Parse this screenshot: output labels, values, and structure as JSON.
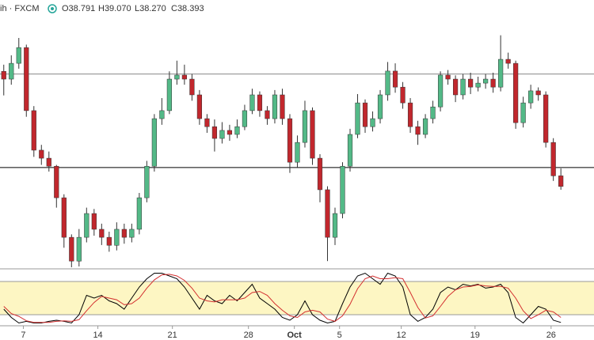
{
  "header": {
    "symbol": "ih · FXCM",
    "ohlc": [
      "O38.791",
      "H39.070",
      "L38.270",
      "C38.393"
    ]
  },
  "chart_data": [
    {
      "type": "candlestick",
      "xlim": [
        -0.5,
        78.4
      ],
      "ylim": [
        35.31,
        45.37
      ],
      "up_color": "#53b987",
      "down_color": "#c1272d",
      "wick_color": "#333333",
      "levels": [
        {
          "value": 42.6,
          "color": "#888888"
        },
        {
          "value": 39.1,
          "color": "#000000"
        }
      ],
      "open": [
        42.7,
        42.41,
        43.0,
        43.59,
        41.23,
        39.75,
        39.45,
        39.15,
        37.97,
        36.49,
        35.6,
        36.49,
        37.38,
        36.79,
        36.49,
        36.19,
        36.79,
        36.49,
        36.79,
        37.97,
        39.15,
        40.93,
        41.23,
        42.41,
        42.56,
        42.41,
        41.82,
        40.93,
        40.63,
        40.19,
        40.49,
        40.34,
        40.63,
        41.23,
        41.82,
        41.23,
        40.93,
        41.82,
        40.93,
        39.3,
        40.04,
        41.23,
        39.45,
        38.27,
        36.49,
        37.38,
        39.15,
        40.34,
        41.52,
        40.63,
        40.93,
        41.82,
        42.71,
        42.11,
        41.52,
        40.63,
        40.34,
        40.93,
        41.37,
        42.56,
        42.41,
        41.82,
        42.41,
        42.11,
        42.26,
        42.41,
        42.11,
        43.15,
        43.0,
        40.78,
        41.52,
        41.97,
        41.82,
        40.04,
        38.791
      ],
      "high": [
        42.95,
        43.3,
        43.95,
        43.7,
        41.4,
        39.95,
        39.7,
        39.2,
        38.1,
        36.6,
        36.8,
        37.6,
        37.55,
        37.0,
        36.7,
        37.05,
        37.0,
        37.0,
        38.15,
        39.35,
        41.1,
        41.7,
        42.7,
        43.1,
        42.95,
        42.6,
        42.0,
        41.1,
        40.9,
        40.8,
        40.7,
        40.9,
        41.45,
        42.05,
        41.95,
        41.4,
        42.0,
        42.05,
        41.1,
        40.3,
        41.6,
        41.35,
        39.6,
        38.4,
        37.6,
        39.3,
        40.55,
        41.85,
        41.65,
        41.2,
        42.0,
        43.05,
        43.0,
        42.3,
        41.7,
        40.85,
        41.1,
        41.6,
        42.7,
        42.75,
        42.55,
        42.6,
        42.65,
        42.5,
        42.6,
        42.65,
        44.05,
        43.4,
        43.1,
        41.75,
        42.2,
        42.1,
        41.95,
        40.2,
        39.07
      ],
      "low": [
        41.8,
        42.2,
        42.8,
        41.0,
        39.5,
        39.2,
        38.95,
        37.6,
        36.1,
        35.37,
        35.4,
        36.3,
        36.55,
        36.2,
        35.95,
        36.0,
        36.25,
        36.3,
        36.6,
        37.8,
        38.95,
        40.7,
        41.1,
        42.2,
        42.2,
        41.6,
        40.7,
        40.4,
        39.7,
        40.0,
        40.1,
        40.2,
        40.5,
        41.1,
        41.0,
        40.7,
        40.75,
        40.7,
        38.9,
        39.1,
        39.85,
        39.2,
        37.8,
        35.6,
        36.2,
        37.2,
        38.95,
        40.2,
        40.4,
        40.45,
        40.75,
        41.6,
        41.9,
        41.3,
        40.4,
        39.95,
        40.2,
        40.75,
        41.2,
        42.2,
        41.55,
        41.65,
        41.85,
        41.95,
        42.05,
        41.9,
        41.95,
        42.8,
        40.55,
        40.6,
        41.3,
        41.6,
        39.85,
        38.6,
        38.27
      ],
      "close": [
        42.41,
        43.0,
        43.59,
        41.23,
        39.75,
        39.45,
        39.15,
        37.97,
        36.49,
        35.6,
        36.49,
        37.38,
        36.79,
        36.49,
        36.19,
        36.79,
        36.49,
        36.79,
        37.97,
        39.15,
        40.93,
        41.23,
        42.41,
        42.56,
        42.41,
        41.82,
        40.93,
        40.63,
        40.19,
        40.49,
        40.34,
        40.63,
        41.23,
        41.82,
        41.23,
        40.93,
        41.82,
        40.93,
        39.3,
        40.04,
        41.23,
        39.45,
        38.27,
        36.49,
        37.38,
        39.15,
        40.34,
        41.52,
        40.63,
        40.93,
        41.82,
        42.71,
        42.11,
        41.52,
        40.63,
        40.34,
        40.93,
        41.37,
        42.56,
        42.41,
        41.82,
        42.41,
        42.11,
        42.26,
        42.41,
        42.11,
        43.15,
        43.0,
        40.78,
        41.52,
        41.97,
        41.82,
        40.04,
        38.79,
        38.393
      ]
    },
    {
      "type": "line",
      "xlim": [
        -0.5,
        78.4
      ],
      "ylim": [
        0,
        100
      ],
      "band": [
        20,
        80
      ],
      "band_color": "#fdf6c3",
      "xticks": [
        {
          "value": 2.6,
          "label": "7"
        },
        {
          "value": 12.5,
          "label": "14"
        },
        {
          "value": 22.4,
          "label": "21"
        },
        {
          "value": 32.5,
          "label": "28"
        },
        {
          "value": 38.6,
          "label": "Oct"
        },
        {
          "value": 44.6,
          "label": "5"
        },
        {
          "value": 52.8,
          "label": "12"
        },
        {
          "value": 62.6,
          "label": "19"
        },
        {
          "value": 72.7,
          "label": "26"
        }
      ],
      "series": [
        {
          "color": "#000000",
          "values": [
            30,
            15,
            5,
            8,
            5,
            5,
            8,
            10,
            8,
            5,
            20,
            55,
            50,
            55,
            45,
            40,
            30,
            50,
            70,
            85,
            95,
            95,
            90,
            85,
            70,
            50,
            30,
            55,
            45,
            40,
            55,
            45,
            60,
            75,
            50,
            40,
            30,
            15,
            10,
            20,
            45,
            20,
            10,
            5,
            8,
            40,
            70,
            90,
            95,
            85,
            75,
            95,
            90,
            70,
            20,
            8,
            15,
            30,
            60,
            70,
            65,
            75,
            72,
            75,
            68,
            70,
            75,
            60,
            15,
            5,
            20,
            35,
            30,
            10,
            6
          ]
        },
        {
          "color": "#d32f2f",
          "values": [
            35,
            22,
            17,
            9,
            6,
            6,
            6,
            8,
            9,
            8,
            11,
            27,
            42,
            53,
            50,
            47,
            38,
            40,
            50,
            68,
            83,
            92,
            93,
            90,
            82,
            68,
            50,
            45,
            43,
            47,
            47,
            47,
            50,
            60,
            62,
            55,
            40,
            28,
            18,
            15,
            25,
            28,
            25,
            12,
            8,
            18,
            39,
            67,
            85,
            90,
            85,
            85,
            87,
            85,
            60,
            33,
            14,
            18,
            35,
            53,
            65,
            70,
            71,
            74,
            72,
            71,
            71,
            68,
            50,
            27,
            13,
            20,
            28,
            25,
            15
          ]
        }
      ]
    }
  ]
}
